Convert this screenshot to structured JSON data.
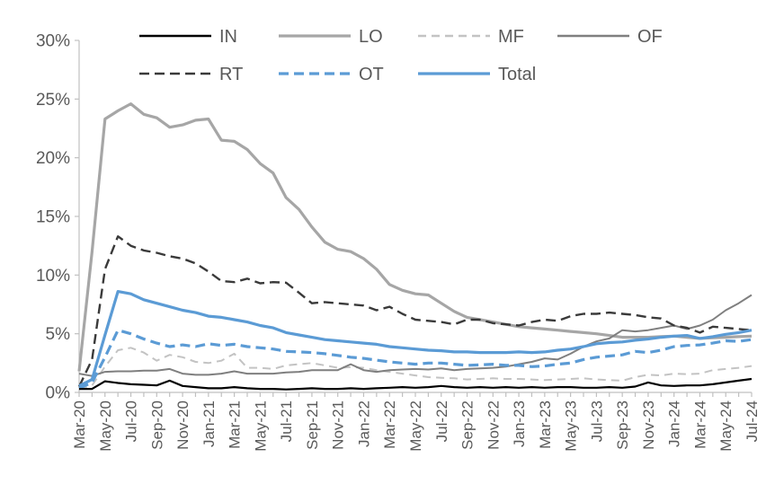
{
  "chart_data": {
    "type": "line",
    "title": "",
    "xlabel": "",
    "ylabel": "",
    "y_axis": {
      "min": 0,
      "max": 30,
      "step": 5,
      "tick_labels": [
        "0%",
        "5%",
        "10%",
        "15%",
        "20%",
        "25%",
        "30%"
      ]
    },
    "x_tick_labels_shown": [
      "Mar-20",
      "May-20",
      "Jul-20",
      "Sep-20",
      "Nov-20",
      "Jan-21",
      "Mar-21",
      "May-21",
      "Jul-21",
      "Sep-21",
      "Nov-21",
      "Jan-22",
      "Mar-22",
      "May-22",
      "Jul-22",
      "Sep-22",
      "Nov-22",
      "Jan-23",
      "Mar-23",
      "May-23",
      "Jul-23",
      "Sep-23",
      "Nov-23",
      "Jan-24",
      "Mar-24",
      "May-24",
      "Jul-24"
    ],
    "x": [
      "Mar-20",
      "Apr-20",
      "May-20",
      "Jun-20",
      "Jul-20",
      "Aug-20",
      "Sep-20",
      "Oct-20",
      "Nov-20",
      "Dec-20",
      "Jan-21",
      "Feb-21",
      "Mar-21",
      "Apr-21",
      "May-21",
      "Jun-21",
      "Jul-21",
      "Aug-21",
      "Sep-21",
      "Oct-21",
      "Nov-21",
      "Dec-21",
      "Jan-22",
      "Feb-22",
      "Mar-22",
      "Apr-22",
      "May-22",
      "Jun-22",
      "Jul-22",
      "Aug-22",
      "Sep-22",
      "Oct-22",
      "Nov-22",
      "Dec-22",
      "Jan-23",
      "Feb-23",
      "Mar-23",
      "Apr-23",
      "May-23",
      "Jun-23",
      "Jul-23",
      "Aug-23",
      "Sep-23",
      "Oct-23",
      "Nov-23",
      "Dec-23",
      "Jan-24",
      "Feb-24",
      "Mar-24",
      "Apr-24",
      "May-24",
      "Jun-24",
      "Jul-24"
    ],
    "grid": false,
    "legend_position": "top",
    "legend_rows": [
      [
        "IN",
        "LO",
        "MF",
        "OF"
      ],
      [
        "RT",
        "OT",
        "Total"
      ]
    ],
    "axis_color": "#c0c0c0",
    "label_color": "#595959",
    "series": [
      {
        "name": "IN",
        "color": "#000000",
        "line_style": "solid",
        "width": 2.2,
        "values": [
          0.3,
          0.3,
          0.95,
          0.8,
          0.7,
          0.65,
          0.6,
          1.0,
          0.55,
          0.45,
          0.35,
          0.35,
          0.45,
          0.35,
          0.3,
          0.3,
          0.25,
          0.3,
          0.35,
          0.3,
          0.3,
          0.35,
          0.3,
          0.35,
          0.4,
          0.45,
          0.4,
          0.45,
          0.55,
          0.45,
          0.4,
          0.45,
          0.4,
          0.45,
          0.4,
          0.45,
          0.4,
          0.45,
          0.45,
          0.4,
          0.4,
          0.45,
          0.4,
          0.5,
          0.85,
          0.6,
          0.55,
          0.6,
          0.6,
          0.7,
          0.85,
          1.0,
          1.15
        ]
      },
      {
        "name": "LO",
        "color": "#a6a6a6",
        "line_style": "solid",
        "width": 3.2,
        "values": [
          1.8,
          12.0,
          23.3,
          24.0,
          24.6,
          23.7,
          23.4,
          22.6,
          22.8,
          23.2,
          23.3,
          21.5,
          21.4,
          20.7,
          19.5,
          18.7,
          16.6,
          15.6,
          14.1,
          12.8,
          12.2,
          12.0,
          11.4,
          10.5,
          9.2,
          8.7,
          8.4,
          8.3,
          7.6,
          6.9,
          6.4,
          6.2,
          6.0,
          5.8,
          5.6,
          5.5,
          5.4,
          5.3,
          5.2,
          5.1,
          5.0,
          4.85,
          4.7,
          4.7,
          4.7,
          4.75,
          4.8,
          4.7,
          4.6,
          4.65,
          4.7,
          4.75,
          4.8
        ]
      },
      {
        "name": "MF",
        "color": "#c3c3c3",
        "line_style": "dashed",
        "width": 2,
        "values": [
          0.3,
          0.6,
          2.2,
          3.6,
          3.8,
          3.4,
          2.7,
          3.2,
          3.0,
          2.6,
          2.5,
          2.7,
          3.3,
          2.1,
          2.1,
          2.0,
          2.3,
          2.4,
          2.5,
          2.3,
          2.1,
          2.15,
          2.1,
          1.9,
          1.75,
          1.6,
          1.45,
          1.3,
          1.25,
          1.2,
          1.1,
          1.15,
          1.2,
          1.15,
          1.15,
          1.1,
          1.05,
          1.1,
          1.15,
          1.2,
          1.1,
          1.05,
          1.0,
          1.3,
          1.5,
          1.45,
          1.6,
          1.55,
          1.6,
          1.9,
          2.0,
          2.1,
          2.25
        ]
      },
      {
        "name": "OF",
        "color": "#7f7f7f",
        "line_style": "solid",
        "width": 2,
        "values": [
          1.6,
          1.4,
          1.75,
          1.8,
          1.8,
          1.85,
          1.85,
          2.0,
          1.6,
          1.5,
          1.5,
          1.6,
          1.8,
          1.6,
          1.6,
          1.6,
          1.7,
          1.75,
          1.9,
          1.9,
          1.9,
          2.4,
          1.9,
          1.75,
          1.9,
          1.95,
          2.0,
          1.95,
          2.05,
          1.9,
          2.0,
          2.05,
          2.1,
          2.2,
          2.4,
          2.6,
          2.9,
          2.8,
          3.3,
          3.9,
          4.35,
          4.6,
          5.3,
          5.2,
          5.3,
          5.5,
          5.7,
          5.4,
          5.7,
          6.2,
          7.0,
          7.6,
          8.3
        ]
      },
      {
        "name": "RT",
        "color": "#3a3a3a",
        "line_style": "dashed",
        "width": 2.4,
        "values": [
          0.5,
          2.8,
          10.5,
          13.3,
          12.5,
          12.1,
          11.9,
          11.6,
          11.4,
          11.0,
          10.3,
          9.5,
          9.4,
          9.7,
          9.3,
          9.4,
          9.35,
          8.5,
          7.6,
          7.7,
          7.6,
          7.5,
          7.4,
          7.0,
          7.3,
          6.7,
          6.2,
          6.1,
          6.0,
          5.8,
          6.2,
          6.2,
          5.9,
          5.8,
          5.7,
          6.0,
          6.2,
          6.1,
          6.5,
          6.7,
          6.7,
          6.8,
          6.7,
          6.6,
          6.4,
          6.3,
          5.7,
          5.5,
          5.1,
          5.6,
          5.5,
          5.4,
          5.3
        ]
      },
      {
        "name": "OT",
        "color": "#5b9bd5",
        "line_style": "dashed",
        "width": 3.2,
        "values": [
          0.35,
          0.85,
          3.0,
          5.3,
          5.0,
          4.55,
          4.2,
          3.9,
          4.05,
          3.9,
          4.15,
          4.0,
          4.1,
          3.9,
          3.8,
          3.7,
          3.5,
          3.45,
          3.4,
          3.3,
          3.15,
          3.0,
          2.9,
          2.75,
          2.6,
          2.5,
          2.4,
          2.5,
          2.5,
          2.4,
          2.3,
          2.35,
          2.4,
          2.3,
          2.3,
          2.2,
          2.25,
          2.4,
          2.5,
          2.8,
          3.0,
          3.1,
          3.2,
          3.5,
          3.4,
          3.6,
          3.9,
          4.0,
          4.05,
          4.2,
          4.4,
          4.35,
          4.5
        ]
      },
      {
        "name": "Total",
        "color": "#5b9bd5",
        "line_style": "solid",
        "width": 3.2,
        "values": [
          0.55,
          1.1,
          4.9,
          8.6,
          8.4,
          7.9,
          7.6,
          7.3,
          7.0,
          6.8,
          6.5,
          6.4,
          6.2,
          6.0,
          5.7,
          5.5,
          5.1,
          4.9,
          4.7,
          4.5,
          4.4,
          4.3,
          4.2,
          4.1,
          3.9,
          3.8,
          3.7,
          3.6,
          3.55,
          3.45,
          3.45,
          3.4,
          3.4,
          3.4,
          3.45,
          3.4,
          3.45,
          3.6,
          3.7,
          3.9,
          4.15,
          4.25,
          4.3,
          4.45,
          4.55,
          4.7,
          4.8,
          4.85,
          4.6,
          4.75,
          4.95,
          5.1,
          5.3
        ]
      }
    ]
  }
}
